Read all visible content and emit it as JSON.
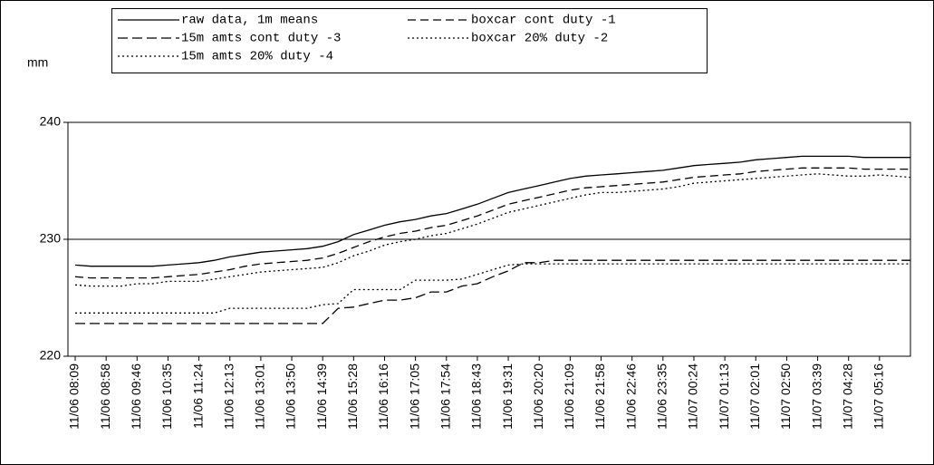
{
  "chart_data": {
    "type": "line",
    "y_label": "mm",
    "categories": [
      "11/06 08:09",
      null,
      "11/06 08:58",
      null,
      "11/06 09:46",
      null,
      "11/06 10:35",
      null,
      "11/06 11:24",
      null,
      "11/06 12:13",
      null,
      "11/06 13:01",
      null,
      "11/06 13:50",
      null,
      "11/06 14:39",
      null,
      "11/06 15:28",
      null,
      "11/06 16:16",
      null,
      "11/06 17:05",
      null,
      "11/06 17:54",
      null,
      "11/06 18:43",
      null,
      "11/06 19:31",
      null,
      "11/06 20:20",
      null,
      "11/06 21:09",
      null,
      "11/06 21:58",
      null,
      "11/06 22:46",
      null,
      "11/06 23:35",
      null,
      "11/07 00:24",
      null,
      "11/07 01:13",
      null,
      "11/07 02:01",
      null,
      "11/07 02:50",
      null,
      "11/07 03:39",
      null,
      "11/07 04:28",
      null,
      "11/07 05:16",
      null,
      null
    ],
    "series": [
      {
        "name": "raw data, 1m means",
        "color": "#000000",
        "dash": "none",
        "values": [
          227.8,
          227.7,
          227.7,
          227.7,
          227.7,
          227.7,
          227.8,
          227.9,
          228.0,
          228.2,
          228.5,
          228.7,
          228.9,
          229.0,
          229.1,
          229.2,
          229.4,
          229.8,
          230.4,
          230.8,
          231.2,
          231.5,
          231.7,
          232.0,
          232.2,
          232.6,
          233.0,
          233.5,
          234.0,
          234.3,
          234.6,
          234.9,
          235.2,
          235.4,
          235.5,
          235.6,
          235.7,
          235.8,
          235.9,
          236.1,
          236.3,
          236.4,
          236.5,
          236.6,
          236.8,
          236.9,
          237.0,
          237.1,
          237.1,
          237.1,
          237.1,
          237.0,
          237.0,
          237.0,
          237.0
        ]
      },
      {
        "name": "boxcar cont duty -1",
        "color": "#000000",
        "dash": "9,5",
        "values": [
          226.8,
          226.7,
          226.7,
          226.7,
          226.7,
          226.7,
          226.8,
          226.9,
          227.0,
          227.2,
          227.4,
          227.7,
          227.9,
          228.0,
          228.1,
          228.2,
          228.4,
          228.8,
          229.3,
          229.8,
          230.2,
          230.5,
          230.7,
          231.0,
          231.2,
          231.6,
          232.0,
          232.5,
          233.0,
          233.3,
          233.6,
          233.9,
          234.2,
          234.4,
          234.5,
          234.6,
          234.7,
          234.8,
          234.9,
          235.1,
          235.3,
          235.4,
          235.5,
          235.6,
          235.8,
          235.9,
          236.0,
          236.1,
          236.1,
          236.1,
          236.1,
          236.0,
          236.0,
          236.0,
          236.0
        ]
      },
      {
        "name": "15m amts cont duty -3",
        "color": "#000000",
        "dash": "11,5",
        "values": [
          222.8,
          222.8,
          222.8,
          222.8,
          222.8,
          222.8,
          222.8,
          222.8,
          222.8,
          222.8,
          222.8,
          222.8,
          222.8,
          222.8,
          222.8,
          222.8,
          222.8,
          224.1,
          224.2,
          224.5,
          224.8,
          224.8,
          225.0,
          225.5,
          225.5,
          226.0,
          226.2,
          226.8,
          227.3,
          228.0,
          228.0,
          228.2,
          228.2,
          228.2,
          228.2,
          228.2,
          228.2,
          228.2,
          228.2,
          228.2,
          228.2,
          228.2,
          228.2,
          228.2,
          228.2,
          228.2,
          228.2,
          228.2,
          228.2,
          228.2,
          228.2,
          228.2,
          228.2,
          228.2,
          228.2
        ]
      },
      {
        "name": "boxcar 20% duty -2",
        "color": "#000000",
        "dash": "2,3",
        "values": [
          226.1,
          226.0,
          226.0,
          226.0,
          226.2,
          226.2,
          226.4,
          226.4,
          226.4,
          226.6,
          226.8,
          227.0,
          227.2,
          227.3,
          227.4,
          227.5,
          227.6,
          228.0,
          228.6,
          229.0,
          229.5,
          229.8,
          230.0,
          230.3,
          230.5,
          230.9,
          231.3,
          231.8,
          232.3,
          232.6,
          232.9,
          233.2,
          233.5,
          233.8,
          234.0,
          234.0,
          234.1,
          234.2,
          234.3,
          234.5,
          234.8,
          234.9,
          235.0,
          235.1,
          235.2,
          235.3,
          235.4,
          235.5,
          235.6,
          235.5,
          235.4,
          235.4,
          235.5,
          235.4,
          235.3
        ]
      },
      {
        "name": "15m amts 20% duty -4",
        "color": "#000000",
        "dash": "2,3",
        "values": [
          223.7,
          223.7,
          223.7,
          223.7,
          223.7,
          223.7,
          223.7,
          223.7,
          223.7,
          223.7,
          224.1,
          224.1,
          224.1,
          224.1,
          224.1,
          224.1,
          224.4,
          224.5,
          225.7,
          225.7,
          225.7,
          225.7,
          226.5,
          226.5,
          226.5,
          226.6,
          227.0,
          227.4,
          227.8,
          227.9,
          227.9,
          227.9,
          227.9,
          227.9,
          227.9,
          227.9,
          227.9,
          227.9,
          227.9,
          227.9,
          227.9,
          227.9,
          227.9,
          227.9,
          227.9,
          227.9,
          227.9,
          227.9,
          227.9,
          227.9,
          227.9,
          227.9,
          227.9,
          227.9,
          227.9
        ]
      }
    ],
    "ylim": [
      220,
      240
    ],
    "yticks": [
      220,
      230,
      240
    ],
    "grid": true
  }
}
